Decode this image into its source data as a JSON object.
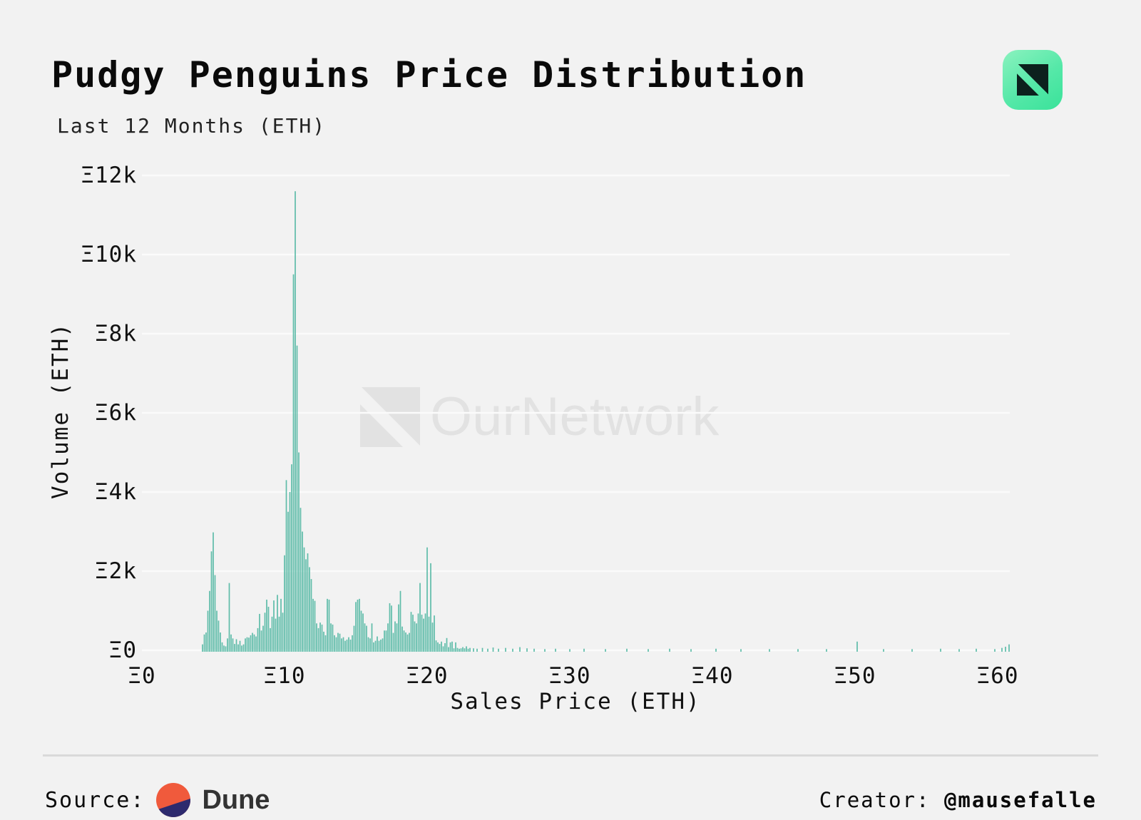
{
  "header": {
    "title": "Pudgy Penguins Price Distribution",
    "subtitle": "Last 12 Months (ETH)"
  },
  "watermark": {
    "text": "OurNetwork"
  },
  "footer": {
    "source_label": "Source:",
    "source_name": "Dune",
    "creator_label": "Creator: ",
    "creator_handle": "@mausefalle"
  },
  "colors": {
    "background": "#f2f2f2",
    "bar": "#5fbca9",
    "gridline": "#fbfbfb",
    "watermark": "#e2e2e2",
    "app_icon_gradient_start": "#8bf2bf",
    "app_icon_gradient_end": "#3ae29a",
    "app_icon_glyph": "#0c211d",
    "dune_orange": "#f05a3c",
    "dune_navy": "#2d2a6e"
  },
  "chart_data": {
    "type": "bar",
    "title": "Pudgy Penguins Price Distribution",
    "subtitle": "Last 12 Months (ETH)",
    "xlabel": "Sales Price (ETH)",
    "ylabel": "Volume (ETH)",
    "xlim": [
      0,
      60.9
    ],
    "ylim": [
      0,
      12000
    ],
    "grid": "horizontal",
    "legend": "none",
    "bin_width_eth": 0.125,
    "bar_color": "#5fbca9",
    "x_ticks": [
      {
        "value": 0,
        "label": "Ξ0"
      },
      {
        "value": 10,
        "label": "Ξ10"
      },
      {
        "value": 20,
        "label": "Ξ20"
      },
      {
        "value": 30,
        "label": "Ξ30"
      },
      {
        "value": 40,
        "label": "Ξ40"
      },
      {
        "value": 50,
        "label": "Ξ50"
      },
      {
        "value": 60,
        "label": "Ξ60"
      }
    ],
    "y_ticks": [
      {
        "value": 0,
        "label": "Ξ0"
      },
      {
        "value": 2000,
        "label": "Ξ2k"
      },
      {
        "value": 4000,
        "label": "Ξ4k"
      },
      {
        "value": 6000,
        "label": "Ξ6k"
      },
      {
        "value": 8000,
        "label": "Ξ8k"
      },
      {
        "value": 10000,
        "label": "Ξ10k"
      },
      {
        "value": 12000,
        "label": "Ξ12k"
      }
    ],
    "points": [
      [
        4.25,
        150
      ],
      [
        4.375,
        400
      ],
      [
        4.5,
        450
      ],
      [
        4.625,
        1000
      ],
      [
        4.75,
        1500
      ],
      [
        4.875,
        2500
      ],
      [
        5,
        2980
      ],
      [
        5.125,
        1900
      ],
      [
        5.25,
        1000
      ],
      [
        5.375,
        750
      ],
      [
        5.5,
        450
      ],
      [
        5.625,
        200
      ],
      [
        5.75,
        120
      ],
      [
        5.875,
        100
      ],
      [
        6,
        300
      ],
      [
        6.125,
        1700
      ],
      [
        6.25,
        400
      ],
      [
        6.375,
        300
      ],
      [
        6.5,
        160
      ],
      [
        6.625,
        280
      ],
      [
        6.75,
        150
      ],
      [
        6.875,
        240
      ],
      [
        7,
        120
      ],
      [
        7.125,
        150
      ],
      [
        7.25,
        300
      ],
      [
        7.375,
        330
      ],
      [
        7.5,
        320
      ],
      [
        7.625,
        380
      ],
      [
        7.75,
        440
      ],
      [
        7.875,
        400
      ],
      [
        8,
        350
      ],
      [
        8.125,
        560
      ],
      [
        8.25,
        920
      ],
      [
        8.375,
        500
      ],
      [
        8.5,
        620
      ],
      [
        8.625,
        950
      ],
      [
        8.75,
        1280
      ],
      [
        8.875,
        1100
      ],
      [
        9,
        560
      ],
      [
        9.125,
        850
      ],
      [
        9.25,
        1260
      ],
      [
        9.375,
        800
      ],
      [
        9.5,
        1400
      ],
      [
        9.625,
        850
      ],
      [
        9.75,
        1300
      ],
      [
        9.875,
        950
      ],
      [
        10,
        2400
      ],
      [
        10.125,
        4300
      ],
      [
        10.25,
        3500
      ],
      [
        10.375,
        4000
      ],
      [
        10.5,
        4700
      ],
      [
        10.625,
        9500
      ],
      [
        10.75,
        11600
      ],
      [
        10.875,
        7700
      ],
      [
        11,
        5000
      ],
      [
        11.125,
        3600
      ],
      [
        11.25,
        3000
      ],
      [
        11.375,
        2600
      ],
      [
        11.5,
        2300
      ],
      [
        11.625,
        2450
      ],
      [
        11.75,
        2100
      ],
      [
        11.875,
        1800
      ],
      [
        12,
        1300
      ],
      [
        12.125,
        1250
      ],
      [
        12.25,
        680
      ],
      [
        12.375,
        560
      ],
      [
        12.5,
        700
      ],
      [
        12.625,
        650
      ],
      [
        12.75,
        470
      ],
      [
        12.875,
        380
      ],
      [
        13,
        1300
      ],
      [
        13.125,
        1280
      ],
      [
        13.25,
        680
      ],
      [
        13.375,
        650
      ],
      [
        13.5,
        380
      ],
      [
        13.625,
        330
      ],
      [
        13.75,
        440
      ],
      [
        13.875,
        420
      ],
      [
        14,
        300
      ],
      [
        14.125,
        330
      ],
      [
        14.25,
        240
      ],
      [
        14.375,
        270
      ],
      [
        14.5,
        330
      ],
      [
        14.625,
        270
      ],
      [
        14.75,
        380
      ],
      [
        14.875,
        620
      ],
      [
        15,
        1220
      ],
      [
        15.125,
        1280
      ],
      [
        15.25,
        1300
      ],
      [
        15.375,
        1000
      ],
      [
        15.5,
        930
      ],
      [
        15.625,
        680
      ],
      [
        15.75,
        620
      ],
      [
        15.875,
        330
      ],
      [
        16,
        300
      ],
      [
        16.125,
        680
      ],
      [
        16.25,
        200
      ],
      [
        16.375,
        240
      ],
      [
        16.5,
        350
      ],
      [
        16.625,
        240
      ],
      [
        16.75,
        270
      ],
      [
        16.875,
        300
      ],
      [
        17,
        500
      ],
      [
        17.125,
        500
      ],
      [
        17.25,
        680
      ],
      [
        17.375,
        1190
      ],
      [
        17.5,
        1130
      ],
      [
        17.625,
        440
      ],
      [
        17.75,
        730
      ],
      [
        17.875,
        680
      ],
      [
        18,
        1160
      ],
      [
        18.125,
        1500
      ],
      [
        18.25,
        600
      ],
      [
        18.375,
        500
      ],
      [
        18.5,
        450
      ],
      [
        18.625,
        400
      ],
      [
        18.75,
        440
      ],
      [
        18.875,
        970
      ],
      [
        19,
        900
      ],
      [
        19.125,
        730
      ],
      [
        19.25,
        680
      ],
      [
        19.375,
        930
      ],
      [
        19.5,
        1700
      ],
      [
        19.625,
        900
      ],
      [
        19.75,
        800
      ],
      [
        19.875,
        930
      ],
      [
        20,
        2600
      ],
      [
        20.125,
        850
      ],
      [
        20.25,
        2200
      ],
      [
        20.375,
        700
      ],
      [
        20.5,
        880
      ],
      [
        20.625,
        250
      ],
      [
        20.75,
        200
      ],
      [
        20.875,
        160
      ],
      [
        21,
        220
      ],
      [
        21.125,
        100
      ],
      [
        21.25,
        180
      ],
      [
        21.375,
        310
      ],
      [
        21.5,
        80
      ],
      [
        21.625,
        200
      ],
      [
        21.75,
        220
      ],
      [
        21.875,
        50
      ],
      [
        22,
        200
      ],
      [
        22.125,
        60
      ],
      [
        22.25,
        40
      ],
      [
        22.375,
        50
      ],
      [
        22.5,
        80
      ],
      [
        22.625,
        50
      ],
      [
        22.75,
        100
      ],
      [
        22.875,
        40
      ],
      [
        23,
        60
      ],
      [
        23.25,
        50
      ],
      [
        23.5,
        40
      ],
      [
        23.875,
        60
      ],
      [
        24.25,
        40
      ],
      [
        24.625,
        70
      ],
      [
        25,
        40
      ],
      [
        25.5,
        60
      ],
      [
        26,
        40
      ],
      [
        26.5,
        80
      ],
      [
        27,
        50
      ],
      [
        27.5,
        40
      ],
      [
        28.25,
        30
      ],
      [
        29,
        40
      ],
      [
        30,
        30
      ],
      [
        31,
        40
      ],
      [
        32.5,
        30
      ],
      [
        34,
        40
      ],
      [
        35.5,
        30
      ],
      [
        37,
        40
      ],
      [
        38.5,
        30
      ],
      [
        40.25,
        40
      ],
      [
        42,
        30
      ],
      [
        44,
        30
      ],
      [
        46,
        30
      ],
      [
        48,
        30
      ],
      [
        50.15,
        220
      ],
      [
        52,
        30
      ],
      [
        54,
        30
      ],
      [
        56,
        40
      ],
      [
        57.3,
        30
      ],
      [
        58.5,
        40
      ],
      [
        59.8,
        30
      ],
      [
        60.3,
        60
      ],
      [
        60.55,
        90
      ],
      [
        60.8,
        150
      ]
    ]
  }
}
